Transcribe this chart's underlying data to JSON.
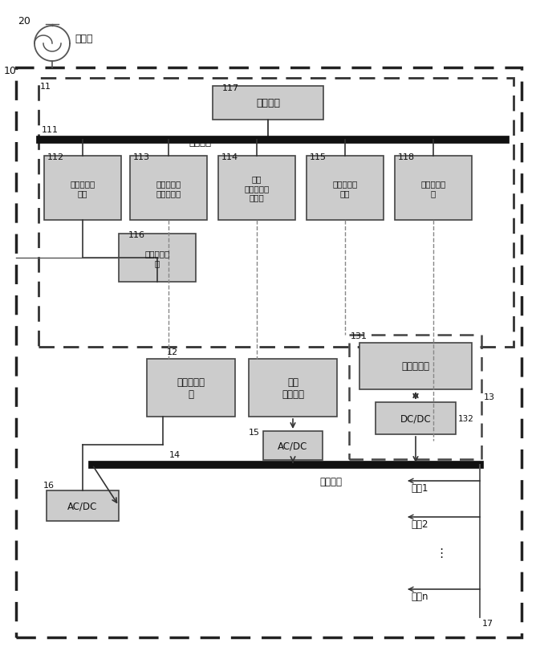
{
  "fig_width": 6.68,
  "fig_height": 8.12,
  "bg_color": "#ffffff",
  "box_face_color": "#cccccc",
  "box_edge_color": "#444444",
  "label_20": "20",
  "label_10": "10",
  "label_11": "11",
  "label_111": "111",
  "label_112": "112",
  "label_113": "113",
  "label_114": "114",
  "label_115": "115",
  "label_116": "116",
  "label_117": "117",
  "label_118": "118",
  "label_12": "12",
  "label_13": "13",
  "label_131": "131",
  "label_132": "132",
  "label_14": "14",
  "label_15": "15",
  "label_16": "16",
  "label_17": "17",
  "text_main_grid": "大电网",
  "text_comm_bus": "通信总线",
  "text_central": "中控模块",
  "text_grid_module": "大电网联络\n模块",
  "text_wind_monitor": "风力发电设\n备监控模块",
  "text_pv_monitor": "光伏\n发电设备监\n控模块",
  "text_battery_monitor": "蓄电池监控\n模块",
  "text_load_monitor": "负载监控模\n块",
  "text_freq_module": "调频调压模\n块",
  "text_wind_equip": "风力发电设\n备",
  "text_pv_equip": "光伏\n发电设备",
  "text_battery_module": "蓄电池模块",
  "text_dcdc": "DC/DC",
  "text_acdc15": "AC/DC",
  "text_acdc16": "AC/DC",
  "text_dc_bus": "直流母线",
  "text_load1": "负载1",
  "text_load2": "负载2",
  "text_dots": "⋮",
  "text_loadn": "负载n"
}
